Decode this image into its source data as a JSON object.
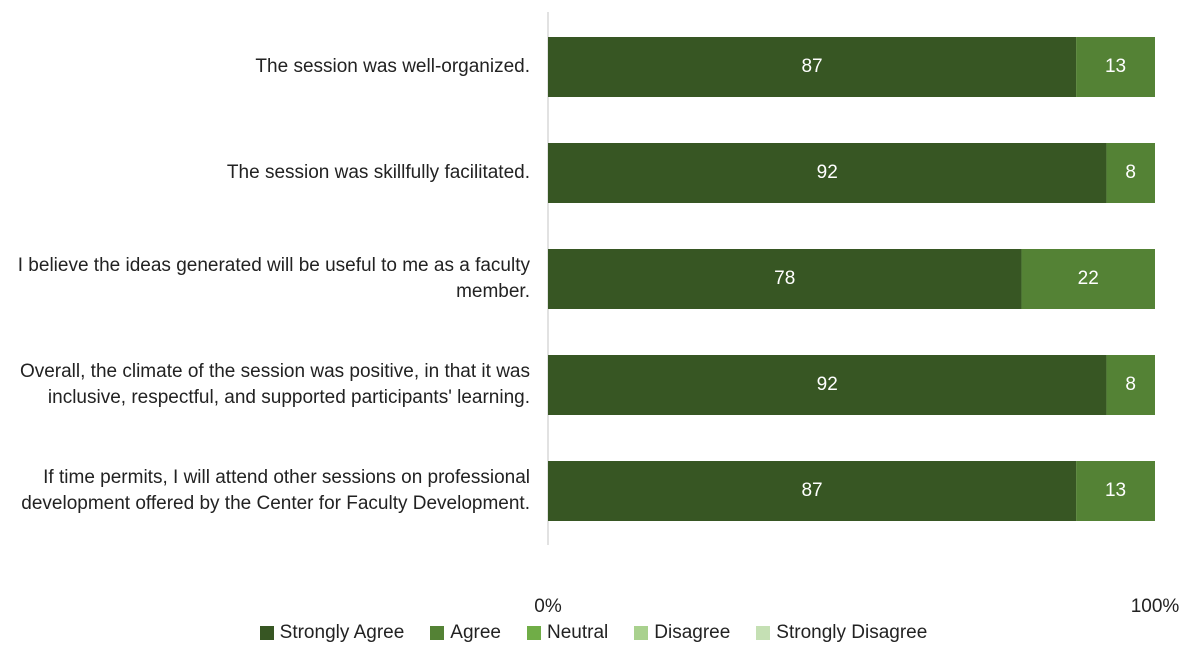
{
  "chart_data": {
    "type": "stacked_barh",
    "categories": [
      "The session was well-organized.",
      "The session was skillfully facilitated.",
      "I believe the ideas generated will be useful to me as a faculty member.",
      "Overall, the climate of the session was positive, in that it was inclusive, respectful, and supported participants' learning.",
      "If time permits, I will attend other sessions on professional development offered by the Center for Faculty Development."
    ],
    "series": [
      {
        "name": "Strongly Agree",
        "color": "#375623",
        "values": [
          87,
          92,
          78,
          92,
          87
        ]
      },
      {
        "name": "Agree",
        "color": "#548235",
        "values": [
          13,
          8,
          22,
          8,
          13
        ]
      },
      {
        "name": "Neutral",
        "color": "#70ad47",
        "values": [
          0,
          0,
          0,
          0,
          0
        ]
      },
      {
        "name": "Disagree",
        "color": "#a9d18e",
        "values": [
          0,
          0,
          0,
          0,
          0
        ]
      },
      {
        "name": "Strongly Disagree",
        "color": "#c5e0b4",
        "values": [
          0,
          0,
          0,
          0,
          0
        ]
      }
    ],
    "xlim": [
      0,
      100
    ],
    "xticks": [
      {
        "value": 0,
        "label": "0%"
      },
      {
        "value": 100,
        "label": "100%"
      }
    ],
    "legend": "bottom"
  }
}
